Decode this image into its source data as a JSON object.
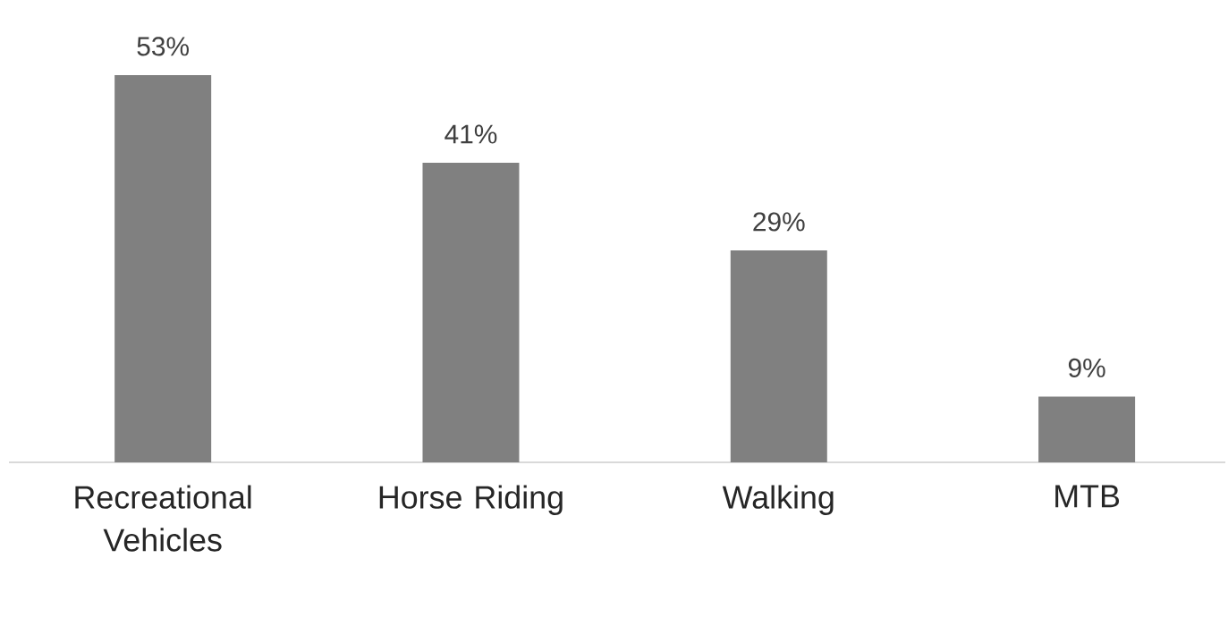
{
  "chart_data": {
    "type": "bar",
    "categories": [
      "Recreational Vehicles",
      "Horse Riding",
      "Walking",
      "MTB"
    ],
    "values": [
      53,
      41,
      29,
      9
    ],
    "value_labels": [
      "53%",
      "41%",
      "29%",
      "9%"
    ],
    "color": "#808080"
  }
}
